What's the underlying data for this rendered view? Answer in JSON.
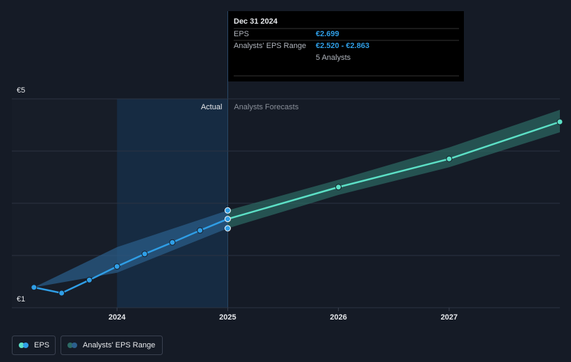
{
  "chart_data": {
    "type": "line",
    "xlim": [
      2023.05,
      2028.0
    ],
    "xticks": [
      2024,
      2025,
      2026,
      2027
    ],
    "ylim": [
      1,
      5
    ],
    "yticks": [
      {
        "value": 1,
        "label": "€1"
      },
      {
        "value": 2,
        "label": null
      },
      {
        "value": 3,
        "label": null
      },
      {
        "value": 4,
        "label": null
      },
      {
        "value": 5,
        "label": "€5"
      }
    ],
    "grid": true,
    "series": [
      {
        "name": "EPS",
        "color": "#2f9ee6",
        "x": [
          2023.25,
          2023.5,
          2023.75,
          2024,
          2024.25,
          2024.5,
          2024.75,
          2025
        ],
        "values": [
          1.39,
          1.28,
          1.53,
          1.79,
          2.03,
          2.25,
          2.48,
          2.699
        ]
      },
      {
        "color": "#5ce0c6",
        "x": [
          2025,
          2026,
          2027,
          2028
        ],
        "values": [
          2.699,
          3.31,
          3.85,
          4.56
        ]
      }
    ],
    "range": {
      "name": "Analysts' EPS Range",
      "colors": [
        "#2b5f8c",
        "#2c6a64"
      ],
      "x": [
        2023.25,
        2024,
        2025,
        2026,
        2027,
        2028
      ],
      "low": [
        1.39,
        1.67,
        2.52,
        3.16,
        3.69,
        4.36
      ],
      "high": [
        1.39,
        2.16,
        2.863,
        3.45,
        4.07,
        4.79
      ]
    },
    "region_labels": [
      "Actual",
      "Analysts Forecasts"
    ],
    "tooltip": {
      "date": "Dec 31 2024",
      "eps_label": "EPS",
      "eps_value": "€2.699",
      "range_label": "Analysts' EPS Range",
      "range_value": "€2.520 - €2.863",
      "analysts": "5 Analysts"
    }
  }
}
